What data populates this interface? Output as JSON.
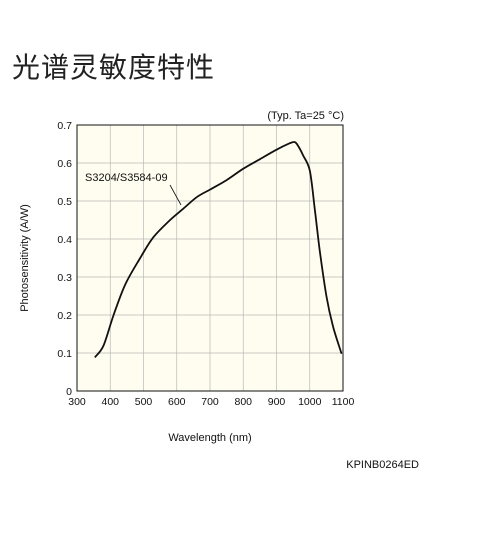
{
  "page": {
    "title": "光谱灵敏度特性",
    "figure_code": "KPINB0264ED"
  },
  "chart_data": {
    "type": "line",
    "condition_note": "(Typ. Ta=25 °C)",
    "xlabel": "Wavelength (nm)",
    "ylabel": "Photosensitivity (A/W)",
    "xlim": [
      300,
      1100
    ],
    "ylim": [
      0,
      0.7
    ],
    "x_ticks": [
      300,
      400,
      500,
      600,
      700,
      800,
      900,
      1000,
      1100
    ],
    "y_ticks": [
      0,
      0.1,
      0.2,
      0.3,
      0.4,
      0.5,
      0.6,
      0.7
    ],
    "y_tick_labels": [
      "0",
      "0.1",
      "0.2",
      "0.3",
      "0.4",
      "0.5",
      "0.6",
      "0.7"
    ],
    "grid": true,
    "series": [
      {
        "name": "S3204/S3584-09",
        "x": [
          355,
          380,
          410,
          445,
          490,
          530,
          580,
          620,
          660,
          700,
          750,
          800,
          850,
          900,
          940,
          955,
          965,
          980,
          1000,
          1015,
          1030,
          1050,
          1070,
          1095
        ],
        "y": [
          0.09,
          0.12,
          0.2,
          0.28,
          0.35,
          0.405,
          0.45,
          0.48,
          0.51,
          0.53,
          0.555,
          0.585,
          0.61,
          0.635,
          0.652,
          0.655,
          0.645,
          0.62,
          0.58,
          0.48,
          0.37,
          0.25,
          0.17,
          0.1
        ]
      }
    ]
  }
}
